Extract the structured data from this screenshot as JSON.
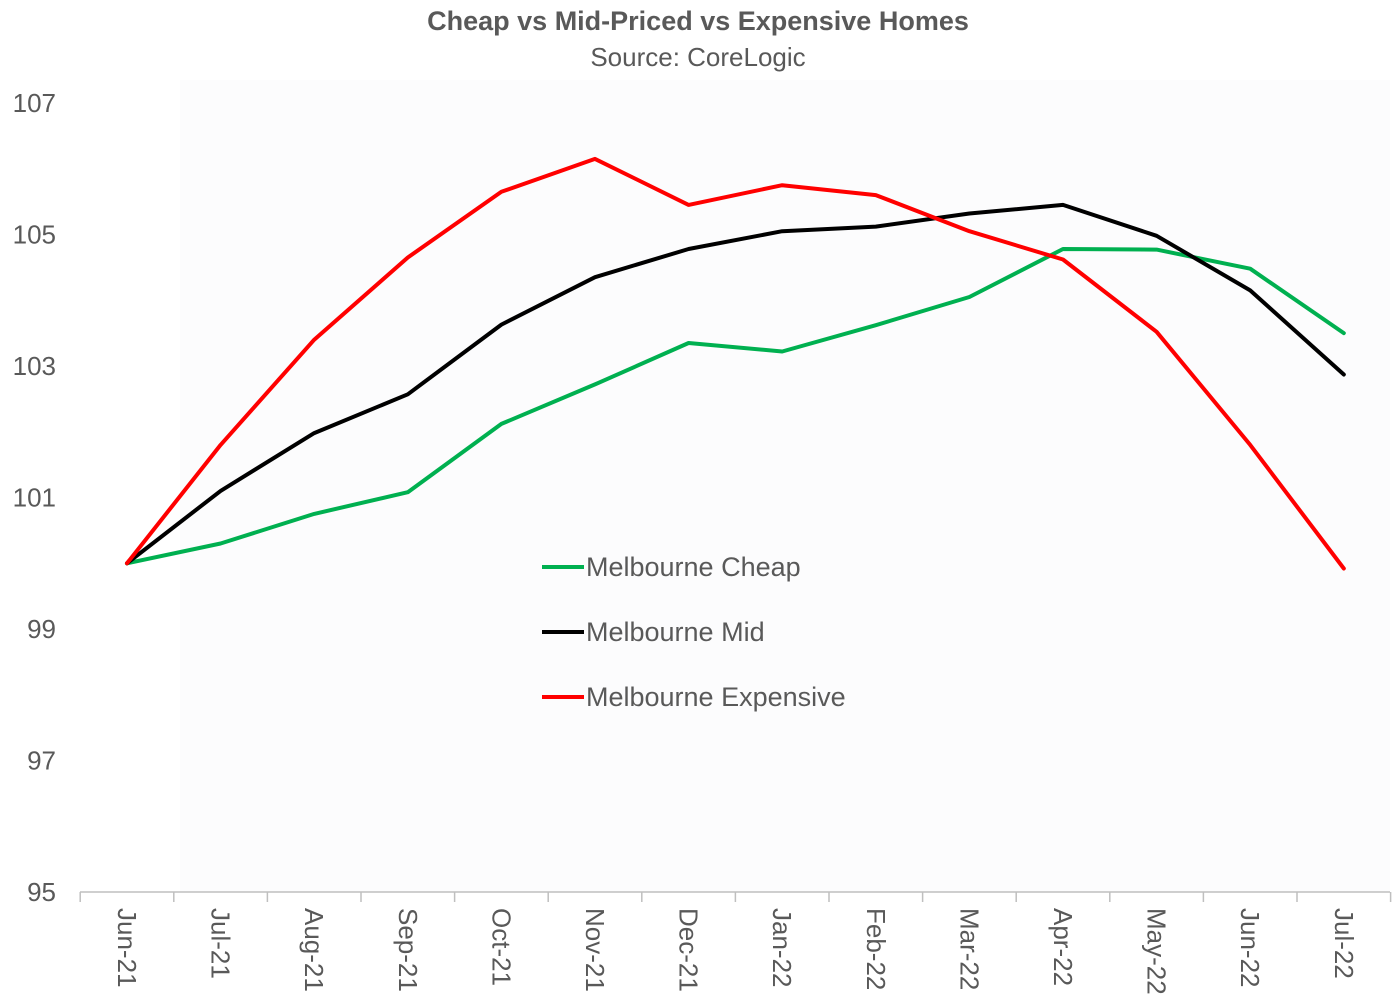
{
  "chart_data": {
    "type": "line",
    "title": "Cheap vs Mid-Priced vs Expensive Homes",
    "subtitle": "Source: CoreLogic",
    "categories": [
      "Jun-21",
      "Jul-21",
      "Aug-21",
      "Sep-21",
      "Oct-21",
      "Nov-21",
      "Dec-21",
      "Jan-22",
      "Feb-22",
      "Mar-22",
      "Apr-22",
      "May-22",
      "Jun-22",
      "Jul-22"
    ],
    "ylim": [
      95,
      107
    ],
    "yticks": [
      95,
      97,
      99,
      101,
      103,
      105,
      107
    ],
    "grid": false,
    "legend_position": "center",
    "series": [
      {
        "name": "Melbourne Cheap",
        "color": "#00b050",
        "values": [
          100.0,
          100.3,
          100.75,
          101.08,
          102.12,
          102.72,
          103.35,
          103.22,
          103.62,
          104.05,
          104.78,
          104.77,
          104.48,
          103.5
        ]
      },
      {
        "name": "Melbourne Mid",
        "color": "#000000",
        "values": [
          100.0,
          101.1,
          101.98,
          102.57,
          103.63,
          104.35,
          104.78,
          105.05,
          105.12,
          105.32,
          105.45,
          104.98,
          104.15,
          102.87
        ]
      },
      {
        "name": "Melbourne Expensive",
        "color": "#ff0000",
        "values": [
          100.0,
          101.8,
          103.4,
          104.65,
          105.65,
          106.15,
          105.45,
          105.75,
          105.6,
          105.05,
          104.62,
          103.52,
          101.8,
          99.92
        ]
      }
    ]
  }
}
